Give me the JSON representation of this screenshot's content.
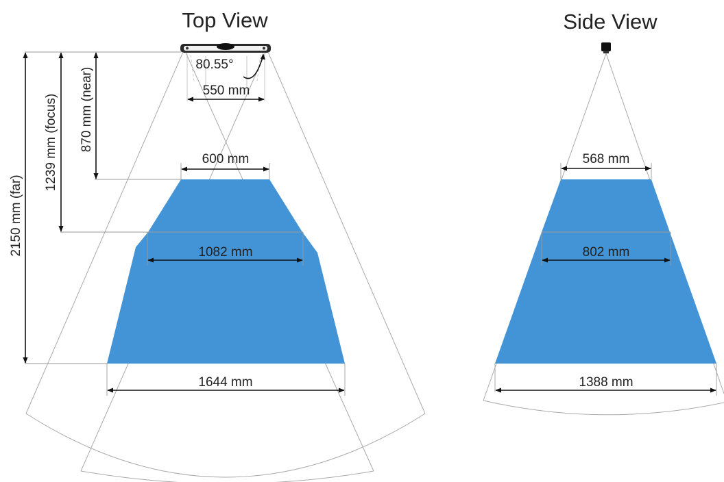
{
  "top_view": {
    "title": "Top View",
    "angle_label": "80.55°",
    "sensor_width_label": "550 mm",
    "near_width_label": "600 mm",
    "focus_width_label": "1082 mm",
    "far_width_label": "1644 mm",
    "near_distance_label": "870 mm (near)",
    "focus_distance_label": "1239 mm (focus)",
    "far_distance_label": "2150 mm (far)"
  },
  "side_view": {
    "title": "Side View",
    "near_width_label": "568 mm",
    "focus_width_label": "802 mm",
    "far_width_label": "1388 mm"
  },
  "colors": {
    "coverage_fill": "#4394d6",
    "beam_stroke": "#a9a9a9",
    "dimension_stroke": "#111111"
  }
}
